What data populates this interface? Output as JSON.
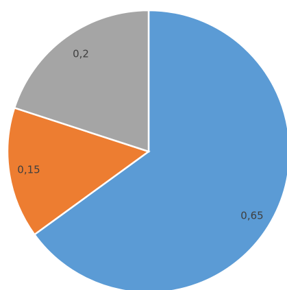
{
  "chart_data": {
    "type": "pie",
    "title": "",
    "categories": [
      "",
      "",
      ""
    ],
    "values": [
      0.65,
      0.15,
      0.2
    ],
    "labels": [
      "0,65",
      "0,15",
      "0,2"
    ],
    "colors": [
      "#5b9bd5",
      "#ed7d31",
      "#a5a5a5"
    ],
    "start_angle_deg": 0,
    "direction": "clockwise",
    "legend": "none"
  }
}
